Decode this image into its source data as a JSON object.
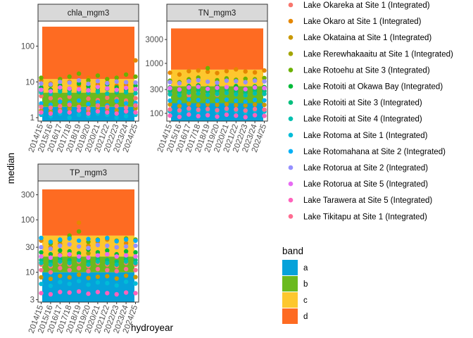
{
  "chart_data": {
    "type": "scatter",
    "ylabel": "median",
    "xlabel": "hydroyear",
    "x_categories": [
      "2014/15",
      "2015/16",
      "2016/17",
      "2017/18",
      "2018/19",
      "2019/20",
      "2020/21",
      "2021/22",
      "2022/23",
      "2023/24",
      "2024/25"
    ],
    "y_scale": "log",
    "grid": false,
    "band_legend": {
      "title": "band",
      "items": [
        {
          "label": "a",
          "color": "#05A2DA"
        },
        {
          "label": "b",
          "color": "#6BBA1E"
        },
        {
          "label": "c",
          "color": "#FDC72E"
        },
        {
          "label": "d",
          "color": "#FE6B22"
        }
      ]
    },
    "site_legend": [
      {
        "label": "Lake Okareka at Site 1 (Integrated)",
        "color": "#F8766D"
      },
      {
        "label": "Lake Okaro at Site 1 (Integrated)",
        "color": "#E58700"
      },
      {
        "label": "Lake Okataina at Site 1 (Integrated)",
        "color": "#C99800"
      },
      {
        "label": "Lake Rerewhakaaitu at Site 1 (Integrated)",
        "color": "#A3A500"
      },
      {
        "label": "Lake Rotoehu at Site 3 (Integrated)",
        "color": "#6BB100"
      },
      {
        "label": "Lake Rotoiti at Okawa Bay (Integrated)",
        "color": "#00BA38"
      },
      {
        "label": "Lake Rotoiti at Site 3 (Integrated)",
        "color": "#00BF7D"
      },
      {
        "label": "Lake Rotoiti at Site 4 (Integrated)",
        "color": "#00C0AF"
      },
      {
        "label": "Lake Rotoma at Site 1 (Integrated)",
        "color": "#00BCD8"
      },
      {
        "label": "Lake Rotomahana at Site 2 (Integrated)",
        "color": "#00B0F6"
      },
      {
        "label": "Lake Rotorua at Site 2 (Integrated)",
        "color": "#9590FF"
      },
      {
        "label": "Lake Rotorua at Site 5 (Integrated)",
        "color": "#E76BF3"
      },
      {
        "label": "Lake Tarawera at Site 5 (Integrated)",
        "color": "#FF62BC"
      },
      {
        "label": "Lake Tikitapu at Site 1 (Integrated)",
        "color": "#FF6C91"
      }
    ],
    "panels": [
      {
        "id": "chla",
        "strip": "chla_mgm3",
        "ylim": [
          0.8,
          500
        ],
        "yticks": [
          1,
          10,
          100
        ],
        "ytick_labels": [
          "1",
          "10",
          "100"
        ],
        "bands": [
          {
            "band": "a",
            "from": 0.8,
            "to": 2
          },
          {
            "band": "b",
            "from": 2,
            "to": 5
          },
          {
            "band": "c",
            "from": 5,
            "to": 12
          },
          {
            "band": "d",
            "from": 12,
            "to": 350
          }
        ],
        "series": [
          {
            "site": 0,
            "values": [
              4.0,
              3.5,
              3.2,
              3.8,
              3.0,
              3.4,
              3.1,
              3.6,
              3.3,
              3.0,
              3.5
            ]
          },
          {
            "site": 1,
            "values": [
              11.0,
              9.0,
              7.5,
              10.0,
              8.0,
              13.0,
              8.5,
              9.5,
              7.8,
              8.2,
              40.0
            ]
          },
          {
            "site": 2,
            "values": [
              1.6,
              1.5,
              1.7,
              1.8,
              1.6,
              1.5,
              1.9,
              1.7,
              1.6,
              1.5,
              1.8
            ]
          },
          {
            "site": 3,
            "values": [
              2.2,
              2.0,
              2.3,
              2.1,
              2.4,
              2.0,
              2.2,
              2.5,
              2.1,
              2.3,
              2.0
            ]
          },
          {
            "site": 4,
            "values": [
              13.0,
              8.0,
              12.0,
              14.0,
              17.0,
              11.0,
              15.0,
              12.0,
              13.0,
              16.0,
              14.0
            ]
          },
          {
            "site": 5,
            "values": [
              7.0,
              6.0,
              8.0,
              6.5,
              9.0,
              7.5,
              6.8,
              8.5,
              7.0,
              6.2,
              7.8
            ]
          },
          {
            "site": 6,
            "values": [
              5.5,
              5.0,
              6.2,
              5.8,
              5.2,
              6.0,
              5.6,
              6.4,
              5.1,
              5.9,
              6.1
            ]
          },
          {
            "site": 7,
            "values": [
              5.0,
              4.6,
              5.4,
              4.8,
              5.6,
              4.9,
              5.2,
              4.7,
              5.5,
              5.1,
              4.8
            ]
          },
          {
            "site": 8,
            "values": [
              1.2,
              1.1,
              1.3,
              1.0,
              1.2,
              1.1,
              1.3,
              1.2,
              1.0,
              1.1,
              1.2
            ]
          },
          {
            "site": 9,
            "values": [
              2.5,
              2.3,
              2.8,
              2.6,
              3.0,
              2.4,
              2.7,
              2.2,
              2.9,
              2.5,
              2.6
            ]
          },
          {
            "site": 10,
            "values": [
              9.0,
              8.5,
              10.0,
              9.5,
              11.0,
              8.8,
              10.5,
              9.2,
              10.2,
              9.8,
              9.6
            ]
          },
          {
            "site": 11,
            "values": [
              6.0,
              5.5,
              7.0,
              6.5,
              6.2,
              5.8,
              7.2,
              6.6,
              6.0,
              6.8,
              6.3
            ]
          },
          {
            "site": 12,
            "values": [
              1.4,
              1.3,
              1.5,
              1.4,
              1.6,
              1.3,
              1.5,
              1.4,
              1.3,
              1.5,
              1.4
            ]
          },
          {
            "site": 13,
            "values": [
              2.0,
              1.9,
              2.1,
              2.3,
              2.0,
              1.8,
              2.2,
              2.0,
              2.1,
              1.9,
              2.2
            ]
          }
        ]
      },
      {
        "id": "tn",
        "strip": "TN_mgm3",
        "ylim": [
          70,
          7000
        ],
        "yticks": [
          100,
          300,
          1000,
          3000
        ],
        "ytick_labels": [
          "100",
          "300",
          "1000",
          "3000"
        ],
        "bands": [
          {
            "band": "a",
            "from": 70,
            "to": 160
          },
          {
            "band": "b",
            "from": 160,
            "to": 350
          },
          {
            "band": "c",
            "from": 350,
            "to": 750
          },
          {
            "band": "d",
            "from": 750,
            "to": 5000
          }
        ],
        "series": [
          {
            "site": 0,
            "values": [
              250,
              240,
              230,
              260,
              245,
              235,
              255,
              240,
              230,
              250,
              245
            ]
          },
          {
            "site": 1,
            "values": [
              650,
              600,
              700,
              720,
              680,
              640,
              700,
              760,
              690,
              660,
              720
            ]
          },
          {
            "site": 2,
            "values": [
              150,
              140,
              155,
              145,
              150,
              148,
              152,
              146,
              144,
              150,
              148
            ]
          },
          {
            "site": 3,
            "values": [
              330,
              310,
              340,
              360,
              320,
              350,
              330,
              340,
              315,
              345,
              335
            ]
          },
          {
            "site": 4,
            "values": [
              450,
              420,
              480,
              520,
              800,
              460,
              500,
              470,
              490,
              480,
              510
            ]
          },
          {
            "site": 5,
            "values": [
              330,
              300,
              350,
              360,
              320,
              340,
              330,
              350,
              310,
              345,
              335
            ]
          },
          {
            "site": 6,
            "values": [
              280,
              260,
              300,
              290,
              270,
              285,
              295,
              275,
              265,
              290,
              280
            ]
          },
          {
            "site": 7,
            "values": [
              240,
              230,
              260,
              250,
              235,
              245,
              255,
              240,
              230,
              250,
              245
            ]
          },
          {
            "site": 8,
            "values": [
              110,
              105,
              115,
              108,
              112,
              106,
              114,
              110,
              104,
              112,
              109
            ]
          },
          {
            "site": 9,
            "values": [
              180,
              170,
              190,
              185,
              175,
              180,
              188,
              178,
              172,
              186,
              182
            ]
          },
          {
            "site": 10,
            "values": [
              420,
              400,
              440,
              460,
              430,
              410,
              450,
              440,
              420,
              450,
              435
            ]
          },
          {
            "site": 11,
            "values": [
              320,
              300,
              330,
              340,
              310,
              325,
              335,
              315,
              305,
              330,
              320
            ]
          },
          {
            "site": 12,
            "values": [
              90,
              85,
              95,
              88,
              92,
              86,
              94,
              90,
              84,
              92,
              89
            ]
          },
          {
            "site": 13,
            "values": [
              120,
              115,
              125,
              118,
              122,
              116,
              124,
              120,
              114,
              122,
              119
            ]
          }
        ]
      },
      {
        "id": "tp",
        "strip": "TP_mgm3",
        "ylim": [
          2.7,
          550
        ],
        "yticks": [
          3,
          10,
          30,
          100,
          300
        ],
        "ytick_labels": [
          "3",
          "10",
          "30",
          "100",
          "300"
        ],
        "bands": [
          {
            "band": "a",
            "from": 2.7,
            "to": 10
          },
          {
            "band": "b",
            "from": 10,
            "to": 20
          },
          {
            "band": "c",
            "from": 20,
            "to": 50
          },
          {
            "band": "d",
            "from": 50,
            "to": 380
          }
        ],
        "series": [
          {
            "site": 0,
            "values": [
              14,
              13,
              15,
              14,
              16,
              13,
              15,
              14,
              13,
              15,
              14
            ]
          },
          {
            "site": 1,
            "values": [
              40,
              30,
              35,
              45,
              88,
              32,
              38,
              42,
              30,
              36,
              40
            ]
          },
          {
            "site": 2,
            "values": [
              8,
              7.5,
              8.5,
              8,
              9,
              7.8,
              8.2,
              8.4,
              7.6,
              8.6,
              8.1
            ]
          },
          {
            "site": 3,
            "values": [
              20,
              18,
              22,
              21,
              19,
              23,
              20,
              22,
              19,
              21,
              20
            ]
          },
          {
            "site": 4,
            "values": [
              45,
              35,
              40,
              50,
              60,
              38,
              42,
              45,
              40,
              44,
              42
            ]
          },
          {
            "site": 5,
            "values": [
              24,
              22,
              26,
              25,
              23,
              27,
              24,
              26,
              22,
              25,
              24
            ]
          },
          {
            "site": 6,
            "values": [
              17,
              16,
              18,
              17,
              19,
              16,
              18,
              17,
              16,
              18,
              17
            ]
          },
          {
            "site": 7,
            "values": [
              15,
              14,
              16,
              15,
              17,
              14,
              16,
              15,
              14,
              16,
              15
            ]
          },
          {
            "site": 8,
            "values": [
              6,
              5.5,
              6.5,
              6,
              6.8,
              5.8,
              6.4,
              6.2,
              5.6,
              6.6,
              6.1
            ]
          },
          {
            "site": 9,
            "values": [
              45,
              38,
              42,
              44,
              40,
              43,
              41,
              45,
              39,
              42,
              40
            ]
          },
          {
            "site": 10,
            "values": [
              30,
              28,
              32,
              34,
              31,
              29,
              33,
              32,
              30,
              31,
              32
            ]
          },
          {
            "site": 11,
            "values": [
              20,
              19,
              21,
              22,
              20,
              19,
              21,
              22,
              20,
              21,
              20
            ]
          },
          {
            "site": 12,
            "values": [
              4,
              3.8,
              4.2,
              4.1,
              4.3,
              3.9,
              4.2,
              4.0,
              3.8,
              4.1,
              4.0
            ]
          },
          {
            "site": 13,
            "values": [
              11,
              10,
              12,
              11,
              12,
              10.5,
              11.5,
              11,
              10.5,
              11.5,
              11
            ]
          }
        ]
      }
    ]
  }
}
